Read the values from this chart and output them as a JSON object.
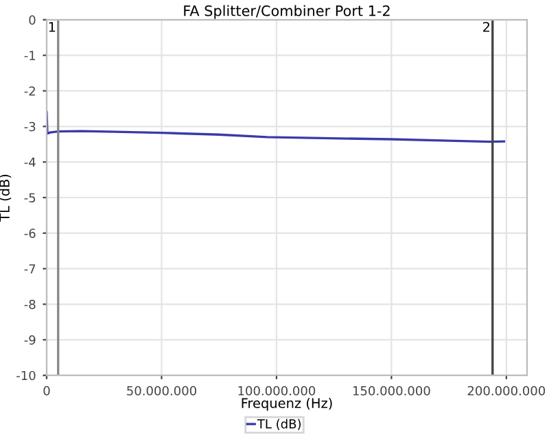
{
  "chart_data": {
    "type": "line",
    "title": "FA Splitter/Combiner Port 1-2",
    "xlabel": "Frequenz (Hz)",
    "ylabel": "TL (dB)",
    "x": [
      0,
      300000,
      1500000,
      5000000,
      15000000,
      30000000,
      50000000,
      75000000,
      96000000,
      120000000,
      150000000,
      175000000,
      193000000,
      199000000
    ],
    "series": [
      {
        "name": "TL (dB)",
        "color": "#3a3aaa",
        "values": [
          -2.6,
          -3.2,
          -3.17,
          -3.14,
          -3.13,
          -3.15,
          -3.18,
          -3.23,
          -3.3,
          -3.33,
          -3.36,
          -3.4,
          -3.43,
          -3.42
        ]
      }
    ],
    "xlim": [
      0,
      209000000
    ],
    "xticks": [
      {
        "value": 0,
        "label": "0"
      },
      {
        "value": 50000000,
        "label": "50.000.000"
      },
      {
        "value": 100000000,
        "label": "100.000.000"
      },
      {
        "value": 150000000,
        "label": "150.000.000"
      },
      {
        "value": 200000000,
        "label": "200.000.000"
      }
    ],
    "ylim": [
      -10,
      0
    ],
    "yticks": [
      -10,
      -9,
      -8,
      -7,
      -6,
      -5,
      -4,
      -3,
      -2,
      -1,
      0
    ],
    "ref_lines": [
      {
        "axis": "x",
        "value": 5000000,
        "color": "#888888"
      },
      {
        "axis": "x",
        "value": 194000000,
        "color": "#444444"
      }
    ],
    "annotations": [
      {
        "text": "1",
        "x": 5000000,
        "y": 0
      },
      {
        "text": "2",
        "x": 194000000,
        "y": 0
      }
    ],
    "grid": true,
    "legend": "bottom",
    "marker": "none",
    "line_style": "solid"
  }
}
